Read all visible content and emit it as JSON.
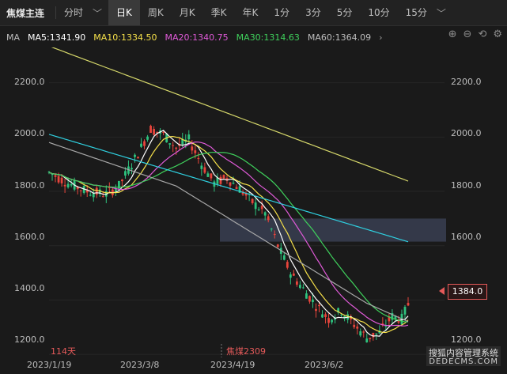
{
  "toolbar": {
    "symbol": "焦煤主连",
    "tabs": [
      {
        "label": "分时",
        "active": false
      },
      {
        "label": "日K",
        "active": true
      },
      {
        "label": "周K",
        "active": false
      },
      {
        "label": "月K",
        "active": false
      },
      {
        "label": "季K",
        "active": false
      },
      {
        "label": "年K",
        "active": false
      },
      {
        "label": "1分",
        "active": false
      },
      {
        "label": "3分",
        "active": false
      },
      {
        "label": "5分",
        "active": false
      },
      {
        "label": "10分",
        "active": false
      },
      {
        "label": "15分",
        "active": false
      }
    ],
    "dropdown_glyph": "﹀"
  },
  "ma_bar": {
    "label": "MA",
    "ma5": "MA5:1341.90",
    "ma10": "MA10:1334.50",
    "ma20": "MA20:1340.75",
    "ma30": "MA30:1314.63",
    "ma60": "MA60:1364.09",
    "colors": {
      "ma5": "#ffffff",
      "ma10": "#f5e04a",
      "ma20": "#e05ad8",
      "ma30": "#3fd15c",
      "ma60": "#a8a8a8",
      "ma120": "#2fd0e0",
      "ma250": "#d7d96b"
    },
    "chevron_glyph": "›"
  },
  "tools": {
    "zoom_in": "⊕",
    "zoom_out": "⊖",
    "reset": "⟲",
    "settings": "⚙"
  },
  "chart_data": {
    "type": "line",
    "title": "",
    "y_ticks_left": [
      "2200.0",
      "2000.0",
      "1800.0",
      "1600.0",
      "1400.0",
      "1200.0"
    ],
    "y_ticks_right": [
      "2200.0",
      "2000.0",
      "1800.0",
      "1600.0",
      "1400.0",
      "1200.0"
    ],
    "x_ticks": [
      "2023/1/19",
      "2023/3/8",
      "2023/4/19",
      "2023/6/2"
    ],
    "ylim": [
      1180,
      2330
    ],
    "last_price": "1384.0",
    "period_note": "114天",
    "contract": "焦煤2309",
    "gap_zone": {
      "low": 1615,
      "high": 1700
    }
  },
  "watermark": {
    "line1": "搜狐内容管理系统",
    "line2": "DEDECMS.COM"
  }
}
